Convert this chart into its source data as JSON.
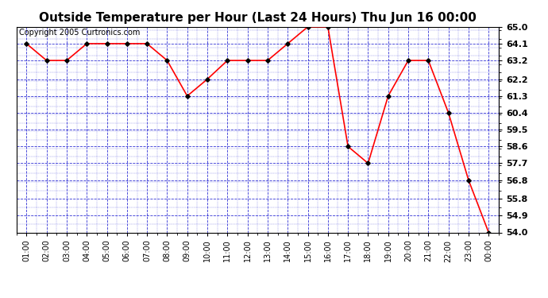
{
  "title": "Outside Temperature per Hour (Last 24 Hours) Thu Jun 16 00:00",
  "copyright": "Copyright 2005 Curtronics.com",
  "x_labels": [
    "01:00",
    "02:00",
    "03:00",
    "04:00",
    "05:00",
    "06:00",
    "07:00",
    "08:00",
    "09:00",
    "10:00",
    "11:00",
    "12:00",
    "13:00",
    "14:00",
    "15:00",
    "16:00",
    "17:00",
    "18:00",
    "19:00",
    "20:00",
    "21:00",
    "22:00",
    "23:00",
    "00:00"
  ],
  "x_values": [
    1,
    2,
    3,
    4,
    5,
    6,
    7,
    8,
    9,
    10,
    11,
    12,
    13,
    14,
    15,
    16,
    17,
    18,
    19,
    20,
    21,
    22,
    23,
    24
  ],
  "y_values": [
    64.1,
    63.2,
    63.2,
    64.1,
    64.1,
    64.1,
    64.1,
    63.2,
    61.3,
    62.2,
    63.2,
    63.2,
    63.2,
    64.1,
    65.0,
    65.0,
    58.6,
    57.7,
    61.3,
    63.2,
    63.2,
    60.4,
    56.8,
    54.0
  ],
  "ylim_min": 54.0,
  "ylim_max": 65.0,
  "yticks": [
    54.0,
    54.9,
    55.8,
    56.8,
    57.7,
    58.6,
    59.5,
    60.4,
    61.3,
    62.2,
    63.2,
    64.1,
    65.0
  ],
  "line_color": "red",
  "marker_color": "black",
  "bg_color": "#ffffff",
  "plot_bg_color": "#ffffff",
  "grid_color": "#0000cc",
  "title_fontsize": 11,
  "copyright_fontsize": 7,
  "ylabel_fontsize": 8,
  "xlabel_fontsize": 7
}
